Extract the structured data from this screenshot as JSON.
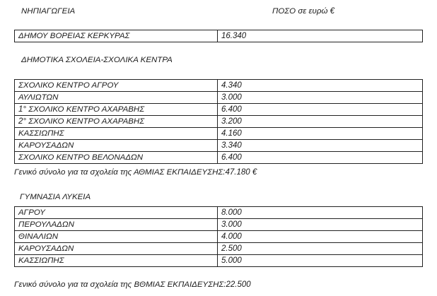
{
  "header": {
    "title": "ΝΗΠΙΑΓΩΓΕΙΑ",
    "amount_label": "ΠΟΣΟ σε ευρώ €"
  },
  "kindergartens": [
    {
      "name": "ΔΗΜΟΥ ΒΟΡΕΙΑΣ ΚΕΡΚΥΡΑΣ",
      "amount": "16.340"
    }
  ],
  "primary": {
    "title": "ΔΗΜΟΤΙΚΑ ΣΧΟΛΕΙΑ-ΣΧΟΛΙΚΑ ΚΕΝΤΡΑ",
    "rows": [
      {
        "name": "ΣΧΟΛΙΚΟ ΚΕΝΤΡΟ ΑΓΡΟΥ",
        "amount": "4.340"
      },
      {
        "name": "ΑΥΛΙΩΤΩΝ",
        "amount": "3.000"
      },
      {
        "name": "1° ΣΧΟΛΙΚΟ ΚΕΝΤΡΟ ΑΧΑΡΑΒΗΣ",
        "amount": "6.400"
      },
      {
        "name": "2° ΣΧΟΛΙΚΟ ΚΕΝΤΡΟ ΑΧΑΡΑΒΗΣ",
        "amount": "3.200"
      },
      {
        "name": "ΚΑΣΣΙΩΠΗΣ",
        "amount": "4.160"
      },
      {
        "name": "ΚΑΡΟΥΣΑΔΩΝ",
        "amount": "3.340"
      },
      {
        "name": "ΣΧΟΛΙΚΟ ΚΕΝΤΡΟ ΒΕΛΟΝΑΔΩΝ",
        "amount": "6.400"
      }
    ],
    "total": "Γενικό σύνολο για τα σχολεία της ΑΘΜΙΑΣ ΕΚΠΑΙΔΕΥΣΗΣ:47.180 €"
  },
  "secondary": {
    "title": "ΓΥΜΝΑΣΙΑ ΛΥΚΕΙΑ",
    "rows": [
      {
        "name": "ΑΓΡΟΥ",
        "amount": "8.000"
      },
      {
        "name": "ΠΕΡΟΥΛΑΔΩΝ",
        "amount": "3.000"
      },
      {
        "name": "ΘΙΝΑΛΙΩΝ",
        "amount": "4.000"
      },
      {
        "name": "ΚΑΡΟΥΣΑΔΩΝ",
        "amount": "2.500"
      },
      {
        "name": "ΚΑΣΣΙΩΠΗΣ",
        "amount": "5.000"
      }
    ],
    "total": "Γενικό σύνολο για τα σχολεία της ΒΘΜΙΑΣ ΕΚΠΑΙΔΕΥΣΗΣ:22.500"
  }
}
